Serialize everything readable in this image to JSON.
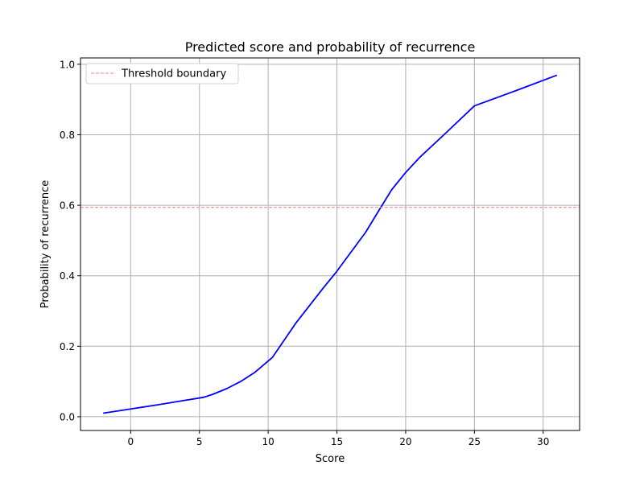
{
  "chart_data": {
    "type": "line",
    "title": "Predicted score and probability of recurrence",
    "xlabel": "Score",
    "ylabel": "Probability of recurrence",
    "xlim": [
      -3.65,
      32.65
    ],
    "ylim": [
      -0.039,
      1.018
    ],
    "xticks": [
      0,
      5,
      10,
      15,
      20,
      25,
      30
    ],
    "yticks": [
      0.0,
      0.2,
      0.4,
      0.6,
      0.8,
      1.0
    ],
    "xtick_labels": [
      "0",
      "5",
      "10",
      "15",
      "20",
      "25",
      "30"
    ],
    "ytick_labels": [
      "0.0",
      "0.2",
      "0.4",
      "0.6",
      "0.8",
      "1.0"
    ],
    "grid": true,
    "legend_position": "top-left",
    "series": [
      {
        "kind": "line",
        "color": "#0000ff",
        "style": "solid",
        "x": [
          -2,
          0,
          2,
          4,
          5.3,
          6,
          7,
          8,
          9,
          10.3,
          12,
          14,
          15,
          17.1,
          18,
          19,
          20,
          21,
          23,
          25,
          28,
          31
        ],
        "y": [
          0.01,
          0.022,
          0.034,
          0.047,
          0.055,
          0.064,
          0.08,
          0.1,
          0.125,
          0.168,
          0.265,
          0.365,
          0.413,
          0.524,
          0.582,
          0.645,
          0.693,
          0.735,
          0.808,
          0.882,
          0.925,
          0.969
        ]
      },
      {
        "kind": "hline",
        "name": "Threshold boundary",
        "color": "#f08080",
        "style": "dashed",
        "y": 0.594
      }
    ]
  }
}
